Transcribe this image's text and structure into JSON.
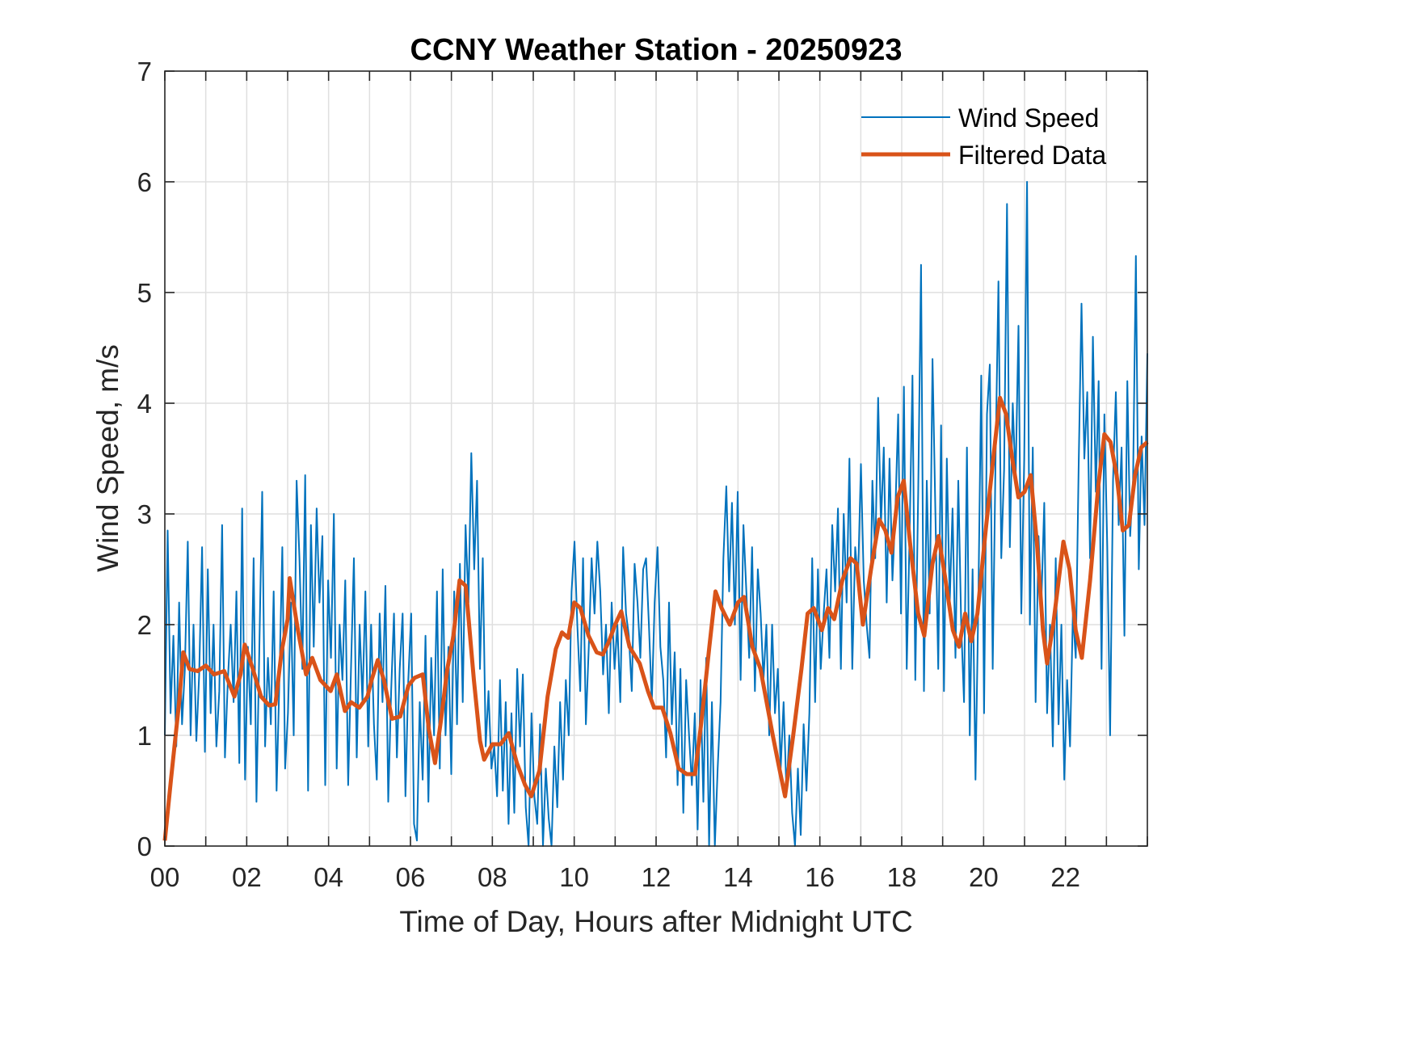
{
  "chart_data": {
    "type": "line",
    "title": "CCNY Weather Station - 20250923",
    "xlabel": "Time of Day, Hours after Midnight UTC",
    "ylabel": "Wind Speed, m/s",
    "xlim": [
      0,
      24
    ],
    "ylim": [
      0,
      7
    ],
    "grid": true,
    "legend_position": "top-right",
    "x_ticks": [
      0,
      2,
      4,
      6,
      8,
      10,
      12,
      14,
      16,
      18,
      20,
      22
    ],
    "x_tick_labels": [
      "00",
      "02",
      "04",
      "06",
      "08",
      "10",
      "12",
      "14",
      "16",
      "18",
      "20",
      "22"
    ],
    "x_minor_grid_step_hours": 1,
    "y_ticks": [
      0,
      1,
      2,
      3,
      4,
      5,
      6,
      7
    ],
    "y_tick_labels": [
      "0",
      "1",
      "2",
      "3",
      "4",
      "5",
      "6",
      "7"
    ],
    "series": [
      {
        "name": "Wind Speed",
        "color": "#0072BD",
        "x_step_hours": 0.0833333,
        "values": [
          1.0,
          2.85,
          1.2,
          1.9,
          0.9,
          2.2,
          1.1,
          1.6,
          2.75,
          1.0,
          2.0,
          0.95,
          1.55,
          2.7,
          0.85,
          2.5,
          1.2,
          2.0,
          0.9,
          1.4,
          2.9,
          0.8,
          1.5,
          2.0,
          1.3,
          2.3,
          0.75,
          3.05,
          0.6,
          1.8,
          1.1,
          2.6,
          0.4,
          1.8,
          3.2,
          0.9,
          1.7,
          1.1,
          2.3,
          0.5,
          1.5,
          2.7,
          0.7,
          1.2,
          2.2,
          1.0,
          3.3,
          2.6,
          1.6,
          3.35,
          0.5,
          2.9,
          1.8,
          3.05,
          2.2,
          2.8,
          0.55,
          2.4,
          1.7,
          3.0,
          0.7,
          2.0,
          1.5,
          2.4,
          0.55,
          1.6,
          2.6,
          0.8,
          2.0,
          1.3,
          2.3,
          0.9,
          2.0,
          1.1,
          0.6,
          2.1,
          1.3,
          2.35,
          0.4,
          1.4,
          2.1,
          0.8,
          1.6,
          2.1,
          0.45,
          1.5,
          2.1,
          0.2,
          0.05,
          1.3,
          0.6,
          1.9,
          0.4,
          1.7,
          1.0,
          2.3,
          0.7,
          2.5,
          1.0,
          1.8,
          0.65,
          2.3,
          1.1,
          2.55,
          1.3,
          2.9,
          2.2,
          3.55,
          2.5,
          3.3,
          1.6,
          2.6,
          0.9,
          1.4,
          0.7,
          0.9,
          0.45,
          1.5,
          0.5,
          1.3,
          0.2,
          1.2,
          0.3,
          1.6,
          0.9,
          1.55,
          0.35,
          0.0,
          1.2,
          0.45,
          0.2,
          1.1,
          0.0,
          0.7,
          0.25,
          0.0,
          0.9,
          0.35,
          1.3,
          0.6,
          1.5,
          1.0,
          2.3,
          2.75,
          2.0,
          1.4,
          2.6,
          1.1,
          1.8,
          2.6,
          2.1,
          2.75,
          2.3,
          1.55,
          2.0,
          1.2,
          2.2,
          1.6,
          2.0,
          1.3,
          2.7,
          2.1,
          1.9,
          1.4,
          2.55,
          2.2,
          1.7,
          2.5,
          2.6,
          2.0,
          1.3,
          2.2,
          2.7,
          1.8,
          1.5,
          0.8,
          2.2,
          1.1,
          1.75,
          0.55,
          1.6,
          0.3,
          1.5,
          1.0,
          0.55,
          1.2,
          0.15,
          1.5,
          0.4,
          1.7,
          0.0,
          1.3,
          0.0,
          0.7,
          1.3,
          2.6,
          3.25,
          2.3,
          3.1,
          2.0,
          3.2,
          1.5,
          2.9,
          2.3,
          1.7,
          2.7,
          1.4,
          2.5,
          2.1,
          1.5,
          2.0,
          1.0,
          2.0,
          1.2,
          1.6,
          0.7,
          1.3,
          0.5,
          1.0,
          0.3,
          0.0,
          0.7,
          0.1,
          1.1,
          0.5,
          1.2,
          2.6,
          1.3,
          2.5,
          1.6,
          2.1,
          2.5,
          1.7,
          2.9,
          2.3,
          3.05,
          1.6,
          3.0,
          2.2,
          3.5,
          1.6,
          2.7,
          2.4,
          3.45,
          2.4,
          2.0,
          1.7,
          3.3,
          2.6,
          4.05,
          2.9,
          3.6,
          2.2,
          3.5,
          2.4,
          3.0,
          3.9,
          2.1,
          4.15,
          1.6,
          2.8,
          4.25,
          1.5,
          3.2,
          5.25,
          1.4,
          3.3,
          2.1,
          4.4,
          3.0,
          1.6,
          3.8,
          1.4,
          3.5,
          2.2,
          3.05,
          1.7,
          3.3,
          2.0,
          1.3,
          3.6,
          1.0,
          2.5,
          0.6,
          2.2,
          4.25,
          1.2,
          3.9,
          4.35,
          1.6,
          3.5,
          5.1,
          2.6,
          3.4,
          5.8,
          2.7,
          4.0,
          3.3,
          4.7,
          2.1,
          3.5,
          6.0,
          2.0,
          3.6,
          1.3,
          2.8,
          2.2,
          3.1,
          1.2,
          2.0,
          0.9,
          2.6,
          1.1,
          2.0,
          0.6,
          1.5,
          0.9,
          2.1,
          1.7,
          3.4,
          4.9,
          3.5,
          4.1,
          2.6,
          4.6,
          3.2,
          4.2,
          1.6,
          3.9,
          2.7,
          1.0,
          3.3,
          4.1,
          2.9,
          3.6,
          1.9,
          4.2,
          2.8,
          3.3,
          5.33,
          2.5,
          3.7,
          2.9,
          4.45
        ]
      },
      {
        "name": "Filtered Data",
        "color": "#D95319",
        "points": [
          [
            0.0,
            0.05
          ],
          [
            0.15,
            0.6
          ],
          [
            0.35,
            1.3
          ],
          [
            0.45,
            1.75
          ],
          [
            0.6,
            1.6
          ],
          [
            0.8,
            1.58
          ],
          [
            1.0,
            1.63
          ],
          [
            1.2,
            1.55
          ],
          [
            1.45,
            1.58
          ],
          [
            1.7,
            1.35
          ],
          [
            1.85,
            1.55
          ],
          [
            1.95,
            1.82
          ],
          [
            2.15,
            1.6
          ],
          [
            2.35,
            1.35
          ],
          [
            2.55,
            1.27
          ],
          [
            2.7,
            1.28
          ],
          [
            2.85,
            1.75
          ],
          [
            3.0,
            2.05
          ],
          [
            3.05,
            2.42
          ],
          [
            3.25,
            1.95
          ],
          [
            3.45,
            1.55
          ],
          [
            3.6,
            1.7
          ],
          [
            3.8,
            1.5
          ],
          [
            4.05,
            1.4
          ],
          [
            4.2,
            1.55
          ],
          [
            4.4,
            1.22
          ],
          [
            4.55,
            1.3
          ],
          [
            4.75,
            1.25
          ],
          [
            4.95,
            1.35
          ],
          [
            5.05,
            1.5
          ],
          [
            5.2,
            1.68
          ],
          [
            5.35,
            1.5
          ],
          [
            5.55,
            1.15
          ],
          [
            5.75,
            1.17
          ],
          [
            5.95,
            1.45
          ],
          [
            6.1,
            1.52
          ],
          [
            6.3,
            1.55
          ],
          [
            6.45,
            1.05
          ],
          [
            6.6,
            0.75
          ],
          [
            6.75,
            1.15
          ],
          [
            6.9,
            1.6
          ],
          [
            7.05,
            1.9
          ],
          [
            7.2,
            2.4
          ],
          [
            7.35,
            2.35
          ],
          [
            7.55,
            1.5
          ],
          [
            7.7,
            0.95
          ],
          [
            7.8,
            0.78
          ],
          [
            8.0,
            0.92
          ],
          [
            8.2,
            0.92
          ],
          [
            8.4,
            1.02
          ],
          [
            8.6,
            0.75
          ],
          [
            8.8,
            0.55
          ],
          [
            8.95,
            0.45
          ],
          [
            9.15,
            0.68
          ],
          [
            9.35,
            1.35
          ],
          [
            9.55,
            1.78
          ],
          [
            9.7,
            1.93
          ],
          [
            9.85,
            1.88
          ],
          [
            10.0,
            2.2
          ],
          [
            10.15,
            2.15
          ],
          [
            10.35,
            1.9
          ],
          [
            10.55,
            1.75
          ],
          [
            10.7,
            1.73
          ],
          [
            10.85,
            1.85
          ],
          [
            11.0,
            2.0
          ],
          [
            11.15,
            2.12
          ],
          [
            11.35,
            1.8
          ],
          [
            11.6,
            1.65
          ],
          [
            11.8,
            1.4
          ],
          [
            11.95,
            1.25
          ],
          [
            12.15,
            1.25
          ],
          [
            12.35,
            1.02
          ],
          [
            12.55,
            0.7
          ],
          [
            12.75,
            0.65
          ],
          [
            12.95,
            0.65
          ],
          [
            13.1,
            1.1
          ],
          [
            13.3,
            1.8
          ],
          [
            13.45,
            2.3
          ],
          [
            13.6,
            2.15
          ],
          [
            13.8,
            2.0
          ],
          [
            14.0,
            2.2
          ],
          [
            14.15,
            2.25
          ],
          [
            14.35,
            1.8
          ],
          [
            14.55,
            1.6
          ],
          [
            14.7,
            1.3
          ],
          [
            14.85,
            1.0
          ],
          [
            15.0,
            0.72
          ],
          [
            15.15,
            0.45
          ],
          [
            15.35,
            1.0
          ],
          [
            15.55,
            1.6
          ],
          [
            15.7,
            2.1
          ],
          [
            15.85,
            2.15
          ],
          [
            16.05,
            1.95
          ],
          [
            16.2,
            2.15
          ],
          [
            16.35,
            2.05
          ],
          [
            16.55,
            2.4
          ],
          [
            16.75,
            2.6
          ],
          [
            16.9,
            2.55
          ],
          [
            17.05,
            2.0
          ],
          [
            17.25,
            2.5
          ],
          [
            17.45,
            2.95
          ],
          [
            17.6,
            2.85
          ],
          [
            17.75,
            2.65
          ],
          [
            17.9,
            3.15
          ],
          [
            18.05,
            3.3
          ],
          [
            18.2,
            2.75
          ],
          [
            18.4,
            2.1
          ],
          [
            18.55,
            1.9
          ],
          [
            18.75,
            2.55
          ],
          [
            18.9,
            2.8
          ],
          [
            19.05,
            2.45
          ],
          [
            19.25,
            1.95
          ],
          [
            19.4,
            1.8
          ],
          [
            19.55,
            2.1
          ],
          [
            19.7,
            1.85
          ],
          [
            19.85,
            2.1
          ],
          [
            20.05,
            2.85
          ],
          [
            20.25,
            3.55
          ],
          [
            20.4,
            4.05
          ],
          [
            20.55,
            3.9
          ],
          [
            20.7,
            3.5
          ],
          [
            20.85,
            3.15
          ],
          [
            21.0,
            3.2
          ],
          [
            21.15,
            3.35
          ],
          [
            21.3,
            2.75
          ],
          [
            21.45,
            1.95
          ],
          [
            21.55,
            1.65
          ],
          [
            21.7,
            2.0
          ],
          [
            21.85,
            2.45
          ],
          [
            21.95,
            2.75
          ],
          [
            22.1,
            2.5
          ],
          [
            22.25,
            1.95
          ],
          [
            22.4,
            1.7
          ],
          [
            22.6,
            2.4
          ],
          [
            22.8,
            3.25
          ],
          [
            22.95,
            3.72
          ],
          [
            23.1,
            3.65
          ],
          [
            23.25,
            3.35
          ],
          [
            23.4,
            2.85
          ],
          [
            23.55,
            2.9
          ],
          [
            23.7,
            3.35
          ],
          [
            23.85,
            3.6
          ],
          [
            24.0,
            3.65
          ]
        ]
      }
    ]
  }
}
